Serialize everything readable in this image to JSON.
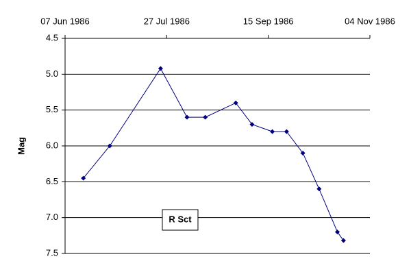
{
  "chart_data": {
    "type": "line",
    "y_label": "Mag",
    "annotation": "R Sct",
    "x": [
      "1986-06-16",
      "1986-06-29",
      "1986-07-24",
      "1986-08-06",
      "1986-08-15",
      "1986-08-30",
      "1986-09-07",
      "1986-09-17",
      "1986-09-24",
      "1986-10-02",
      "1986-10-10",
      "1986-10-19",
      "1986-10-22"
    ],
    "series": [
      {
        "name": "R Sct",
        "color": "#000080",
        "values": [
          6.45,
          6.0,
          4.92,
          5.6,
          5.6,
          5.4,
          5.7,
          5.8,
          5.8,
          6.1,
          6.6,
          7.2,
          7.32
        ]
      }
    ],
    "xlim": [
      "1986-06-07",
      "1986-11-04"
    ],
    "xticks": [
      {
        "value": "1986-06-07",
        "label": "07 Jun 1986"
      },
      {
        "value": "1986-07-27",
        "label": "27 Jul 1986"
      },
      {
        "value": "1986-09-15",
        "label": "15 Sep 1986"
      },
      {
        "value": "1986-11-04",
        "label": "04 Nov 1986"
      }
    ],
    "ylim": [
      4.5,
      7.5
    ],
    "yticks": [
      4.5,
      {
        "value": 5,
        "label": "5.0"
      },
      5.5,
      {
        "value": 6,
        "label": "6.0"
      },
      6.5,
      {
        "value": 7,
        "label": "7.0"
      },
      7.5
    ],
    "y_inverted": true,
    "x_axis_position": "top",
    "grid": true
  }
}
